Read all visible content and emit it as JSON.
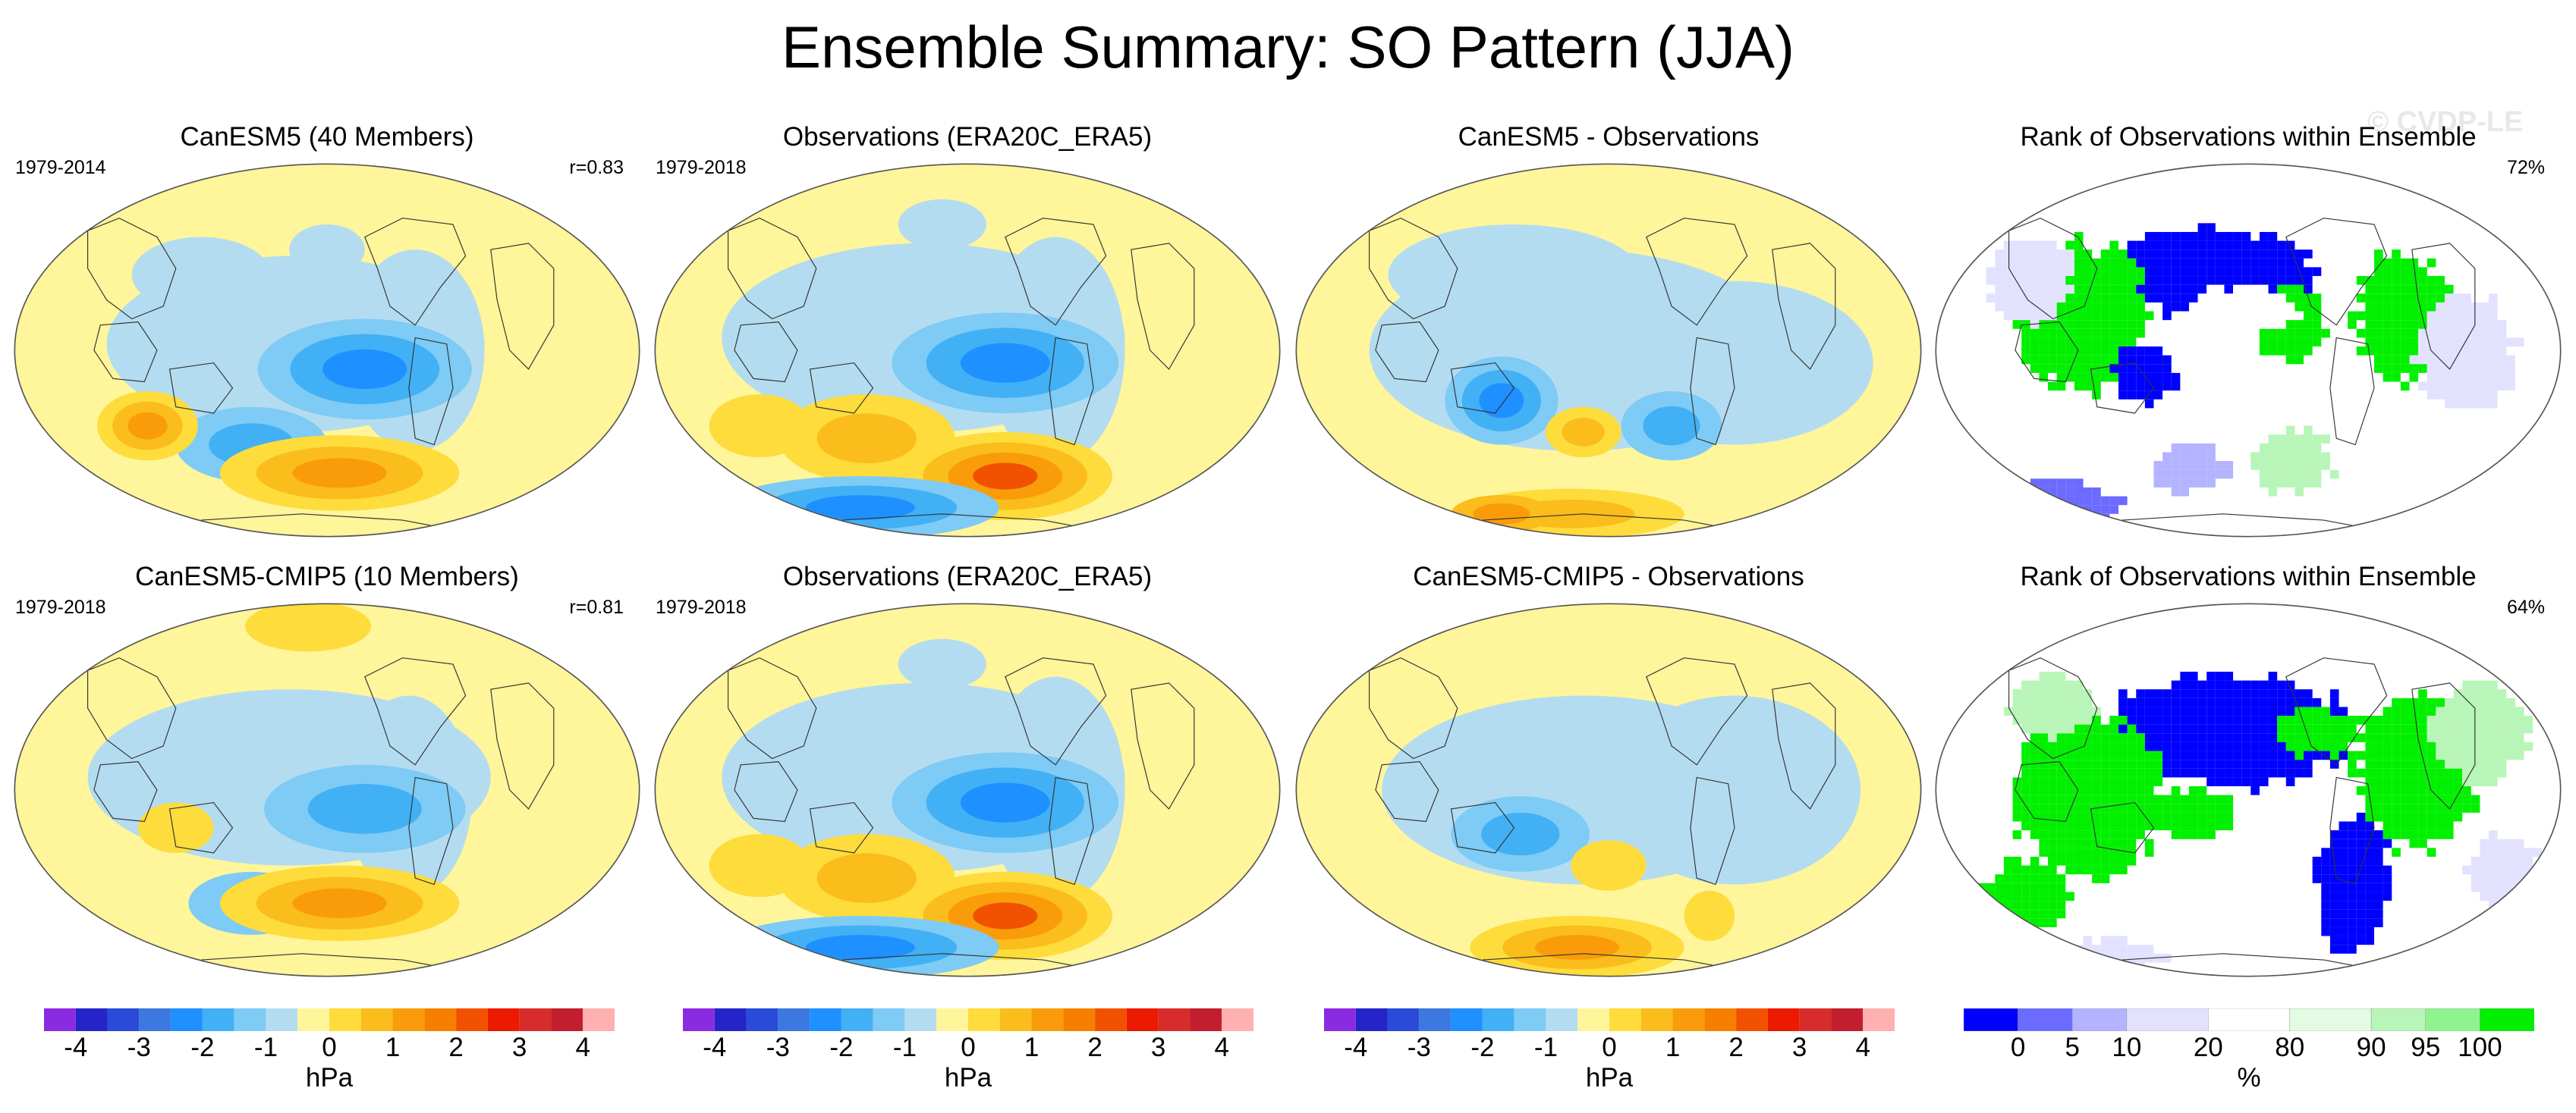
{
  "title": "Ensemble Summary: SO Pattern (JJA)",
  "watermark": "© CVDP-LE",
  "panels": [
    {
      "title": "CanESM5 (40 Members)",
      "left_label": "1979-2014",
      "right_label": "r=0.83",
      "kind": "anom",
      "variant": "model1"
    },
    {
      "title": "Observations (ERA20C_ERA5)",
      "left_label": "1979-2018",
      "right_label": "",
      "kind": "anom",
      "variant": "obs"
    },
    {
      "title": "CanESM5 - Observations",
      "left_label": "",
      "right_label": "",
      "kind": "anom",
      "variant": "diff1"
    },
    {
      "title": "Rank of Observations within Ensemble",
      "left_label": "",
      "right_label": "72%",
      "kind": "rank",
      "variant": "rank1"
    },
    {
      "title": "CanESM5-CMIP5 (10 Members)",
      "left_label": "1979-2018",
      "right_label": "r=0.81",
      "kind": "anom",
      "variant": "model2"
    },
    {
      "title": "Observations (ERA20C_ERA5)",
      "left_label": "1979-2018",
      "right_label": "",
      "kind": "anom",
      "variant": "obs"
    },
    {
      "title": "CanESM5-CMIP5 - Observations",
      "left_label": "",
      "right_label": "",
      "kind": "anom",
      "variant": "diff2"
    },
    {
      "title": "Rank of Observations within Ensemble",
      "left_label": "",
      "right_label": "64%",
      "kind": "rank",
      "variant": "rank2"
    }
  ],
  "colorbars": [
    {
      "units": "hPa",
      "ticks": [
        "-4",
        "-3",
        "-2",
        "-1",
        "0",
        "1",
        "2",
        "3",
        "4"
      ]
    },
    {
      "units": "hPa",
      "ticks": [
        "-4",
        "-3",
        "-2",
        "-1",
        "0",
        "1",
        "2",
        "3",
        "4"
      ]
    },
    {
      "units": "hPa",
      "ticks": [
        "-4",
        "-3",
        "-2",
        "-1",
        "0",
        "1",
        "2",
        "3",
        "4"
      ]
    },
    {
      "units": "%",
      "ticks": [
        "0",
        "5",
        "10",
        "20",
        "80",
        "90",
        "95",
        "100"
      ]
    }
  ],
  "anom_colors": [
    "#8a2be2",
    "#2424c8",
    "#2a4bd7",
    "#3c78e0",
    "#1e90ff",
    "#42b0f5",
    "#7ecbf5",
    "#b4dcf0",
    "#fff59b",
    "#fddc3c",
    "#fbbd1b",
    "#fa9c0a",
    "#f77f00",
    "#f25100",
    "#ec1a00",
    "#d82c2c",
    "#c31e2e",
    "#ffb0b0"
  ],
  "rank_colors": [
    "#0000ff",
    "#6b6bff",
    "#b3b3ff",
    "#e2e2ff",
    "#ffffff",
    "#e3fbe3",
    "#b8f5b8",
    "#8ff38f",
    "#00f000"
  ],
  "chart_data": [
    {
      "type": "heatmap",
      "title": "CanESM5 (40 Members)",
      "period": "1979-2014",
      "pattern_correlation": 0.83,
      "units": "hPa",
      "contour_levels": [
        -4.5,
        -4,
        -3.5,
        -3,
        -2.5,
        -2,
        -1.5,
        -1,
        -0.5,
        0,
        0.5,
        1,
        1.5,
        2,
        2.5,
        3,
        3.5,
        4,
        4.5
      ]
    },
    {
      "type": "heatmap",
      "title": "Observations (ERA20C_ERA5)",
      "period": "1979-2018",
      "units": "hPa"
    },
    {
      "type": "heatmap",
      "title": "CanESM5 - Observations",
      "units": "hPa"
    },
    {
      "type": "heatmap",
      "title": "Rank of Observations within Ensemble",
      "pct_area": "72%",
      "units": "%",
      "levels": [
        0,
        5,
        10,
        20,
        80,
        90,
        95,
        100
      ]
    },
    {
      "type": "heatmap",
      "title": "CanESM5-CMIP5 (10 Members)",
      "period": "1979-2018",
      "pattern_correlation": 0.81,
      "units": "hPa"
    },
    {
      "type": "heatmap",
      "title": "Observations (ERA20C_ERA5)",
      "period": "1979-2018",
      "units": "hPa"
    },
    {
      "type": "heatmap",
      "title": "CanESM5-CMIP5 - Observations",
      "units": "hPa"
    },
    {
      "type": "heatmap",
      "title": "Rank of Observations within Ensemble",
      "pct_area": "64%",
      "units": "%",
      "levels": [
        0,
        5,
        10,
        20,
        80,
        90,
        95,
        100
      ]
    }
  ]
}
